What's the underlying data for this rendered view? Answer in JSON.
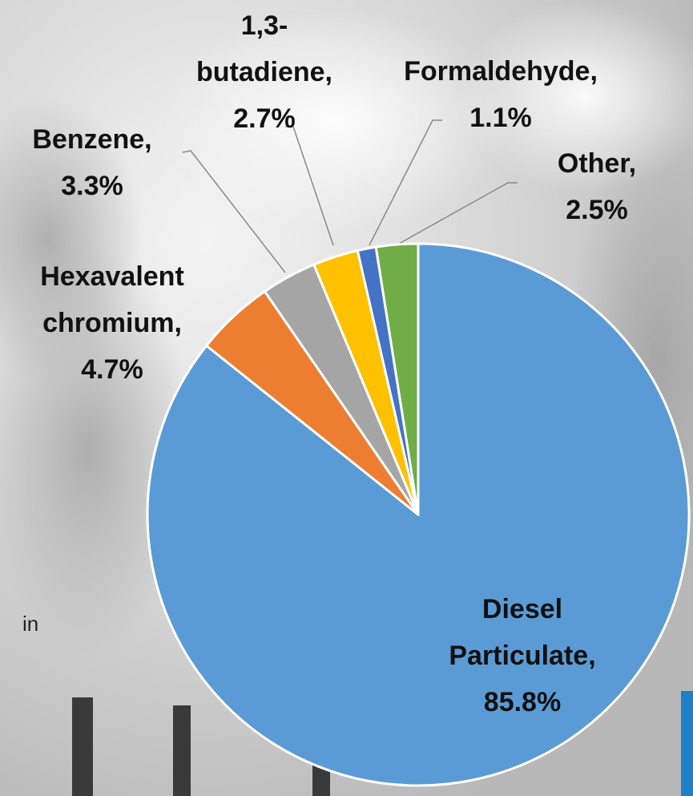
{
  "chart_data": {
    "type": "pie",
    "labels": [
      [
        "Diesel",
        "Particulate,",
        "85.8%"
      ],
      [
        "Hexavalent",
        "chromium,",
        "4.7%"
      ],
      [
        "Benzene,",
        "3.3%"
      ],
      [
        "1,3-",
        "butadiene,",
        "2.7%"
      ],
      [
        "Formaldehyde,",
        "1.1%"
      ],
      [
        "Other,",
        "2.5%"
      ]
    ],
    "values": [
      85.8,
      4.7,
      3.3,
      2.7,
      1.1,
      2.5
    ],
    "colors": [
      "#5b9bd5",
      "#ed7d31",
      "#a5a5a5",
      "#ffc000",
      "#4472c4",
      "#70ad47"
    ],
    "start_angle": "top",
    "direction": "clockwise"
  },
  "background_text": "in"
}
